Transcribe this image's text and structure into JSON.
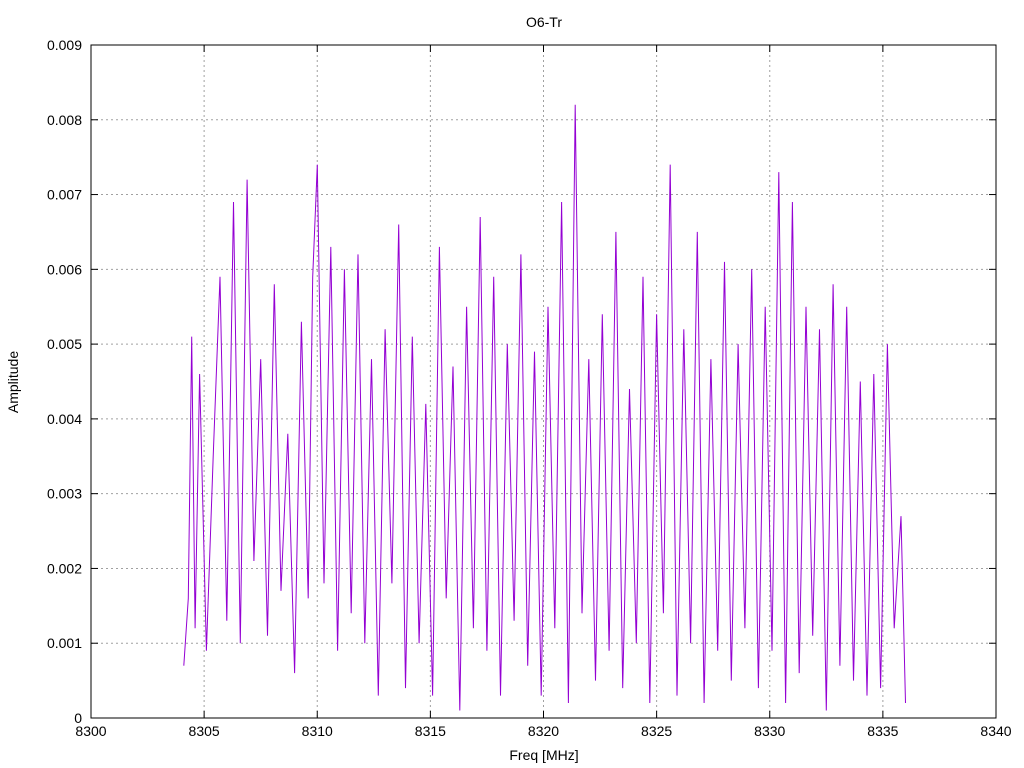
{
  "chart_data": {
    "type": "line",
    "title": "O6-Tr",
    "xlabel": "Freq [MHz]",
    "ylabel": "Amplitude",
    "xlim": [
      8300,
      8340
    ],
    "ylim": [
      0,
      0.009
    ],
    "xticks": [
      8300,
      8305,
      8310,
      8315,
      8320,
      8325,
      8330,
      8335,
      8340
    ],
    "xtick_labels": [
      "8300",
      "8305",
      "8310",
      "8315",
      "8320",
      "8325",
      "8330",
      "8335",
      "8340"
    ],
    "yticks": [
      0,
      0.001,
      0.002,
      0.003,
      0.004,
      0.005,
      0.006,
      0.007,
      0.008,
      0.009
    ],
    "ytick_labels": [
      "0",
      "0.001",
      "0.002",
      "0.003",
      "0.004",
      "0.005",
      "0.006",
      "0.007",
      "0.008",
      "0.009"
    ],
    "grid": true,
    "legend": "none",
    "series": [
      {
        "color": "#9400d3",
        "x": [
          8304.1,
          8304.3,
          8304.45,
          8304.6,
          8304.8,
          8305.1,
          8305.4,
          8305.7,
          8306.0,
          8306.3,
          8306.6,
          8306.9,
          8307.2,
          8307.5,
          8307.8,
          8308.1,
          8308.4,
          8308.7,
          8309.0,
          8309.3,
          8309.6,
          8309.8,
          8310.0,
          8310.3,
          8310.6,
          8310.9,
          8311.2,
          8311.5,
          8311.8,
          8312.1,
          8312.4,
          8312.7,
          8313.0,
          8313.3,
          8313.6,
          8313.9,
          8314.2,
          8314.5,
          8314.8,
          8315.1,
          8315.4,
          8315.7,
          8316.0,
          8316.3,
          8316.6,
          8316.9,
          8317.2,
          8317.5,
          8317.8,
          8318.1,
          8318.4,
          8318.7,
          8319.0,
          8319.3,
          8319.6,
          8319.9,
          8320.2,
          8320.5,
          8320.8,
          8321.1,
          8321.4,
          8321.7,
          8322.0,
          8322.3,
          8322.6,
          8322.9,
          8323.2,
          8323.5,
          8323.8,
          8324.1,
          8324.4,
          8324.7,
          8325.0,
          8325.3,
          8325.6,
          8325.9,
          8326.2,
          8326.5,
          8326.8,
          8327.1,
          8327.4,
          8327.7,
          8328.0,
          8328.3,
          8328.6,
          8328.9,
          8329.2,
          8329.5,
          8329.8,
          8330.1,
          8330.4,
          8330.7,
          8331.0,
          8331.3,
          8331.6,
          8331.9,
          8332.2,
          8332.5,
          8332.8,
          8333.1,
          8333.4,
          8333.7,
          8334.0,
          8334.3,
          8334.6,
          8334.9,
          8335.2,
          8335.5,
          8335.8,
          8336.0
        ],
        "y": [
          0.0007,
          0.0016,
          0.0051,
          0.0012,
          0.0046,
          0.0009,
          0.0035,
          0.0059,
          0.0013,
          0.0069,
          0.001,
          0.0072,
          0.0021,
          0.0048,
          0.0011,
          0.0058,
          0.0017,
          0.0038,
          0.0006,
          0.0053,
          0.0016,
          0.0059,
          0.0074,
          0.0018,
          0.0063,
          0.0009,
          0.006,
          0.0014,
          0.0062,
          0.001,
          0.0048,
          0.0003,
          0.0052,
          0.0018,
          0.0066,
          0.0004,
          0.0051,
          0.001,
          0.0042,
          0.0003,
          0.0063,
          0.0016,
          0.0047,
          0.0001,
          0.0055,
          0.0012,
          0.0067,
          0.0009,
          0.0059,
          0.0003,
          0.005,
          0.0013,
          0.0062,
          0.0007,
          0.0049,
          0.0003,
          0.0055,
          0.0012,
          0.0069,
          0.0002,
          0.0082,
          0.0014,
          0.0048,
          0.0005,
          0.0054,
          0.0009,
          0.0065,
          0.0004,
          0.0044,
          0.001,
          0.0059,
          0.0002,
          0.0054,
          0.0014,
          0.0074,
          0.0003,
          0.0052,
          0.001,
          0.0065,
          0.0002,
          0.0048,
          0.0009,
          0.0061,
          0.0005,
          0.005,
          0.0012,
          0.006,
          0.0004,
          0.0055,
          0.0009,
          0.0073,
          0.0002,
          0.0069,
          0.0006,
          0.0055,
          0.0011,
          0.0052,
          0.0001,
          0.0058,
          0.0007,
          0.0055,
          0.0005,
          0.0045,
          0.0003,
          0.0046,
          0.0004,
          0.005,
          0.0012,
          0.0027,
          0.0002
        ]
      }
    ]
  }
}
